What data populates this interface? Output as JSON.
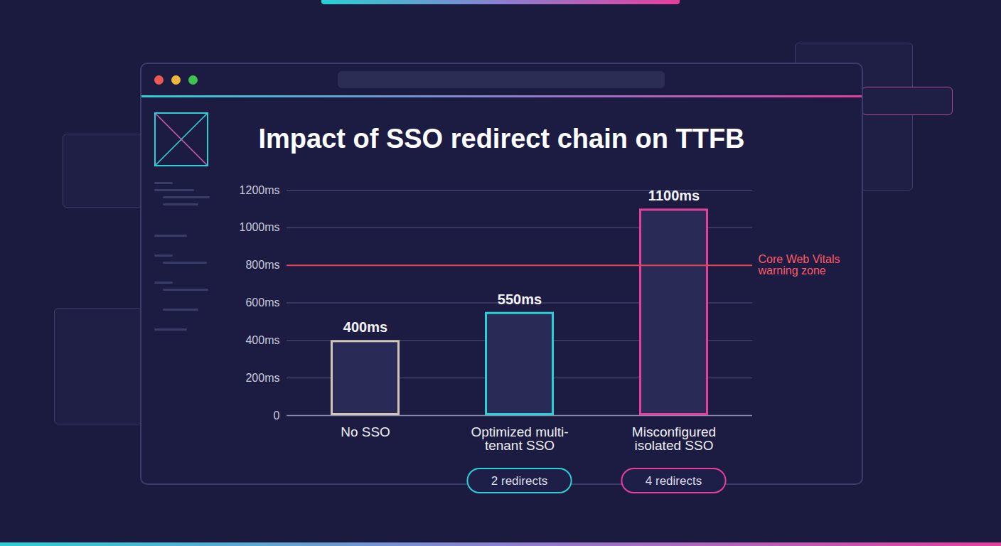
{
  "chart_data": {
    "type": "bar",
    "title": "Impact of SSO redirect chain on TTFB",
    "categories": [
      "No SSO",
      "Optimized multi-tenant SSO",
      "Misconfigured isolated SSO"
    ],
    "values": [
      400,
      550,
      1100
    ],
    "value_labels": [
      "400ms",
      "550ms",
      "1100ms"
    ],
    "colors": [
      "#cfc6b8",
      "#2ccfd2",
      "#e43f9c"
    ],
    "ylim": [
      0,
      1200
    ],
    "yticks": [
      0,
      {
        "value": 200,
        "label": "200ms"
      },
      {
        "value": 400,
        "label": "400ms"
      },
      {
        "value": 600,
        "label": "600ms"
      },
      {
        "value": 800,
        "label": "800ms"
      },
      {
        "value": 1000,
        "label": "1000ms"
      },
      {
        "value": 1200,
        "label": "1200ms"
      }
    ],
    "grid": true,
    "data_labels": true,
    "reference_line": {
      "value": 800,
      "label": "Core Web Vitals warning zone",
      "color": "#e8424e"
    },
    "redirect_badges": [
      null,
      "2 redirects",
      "4 redirects"
    ]
  }
}
